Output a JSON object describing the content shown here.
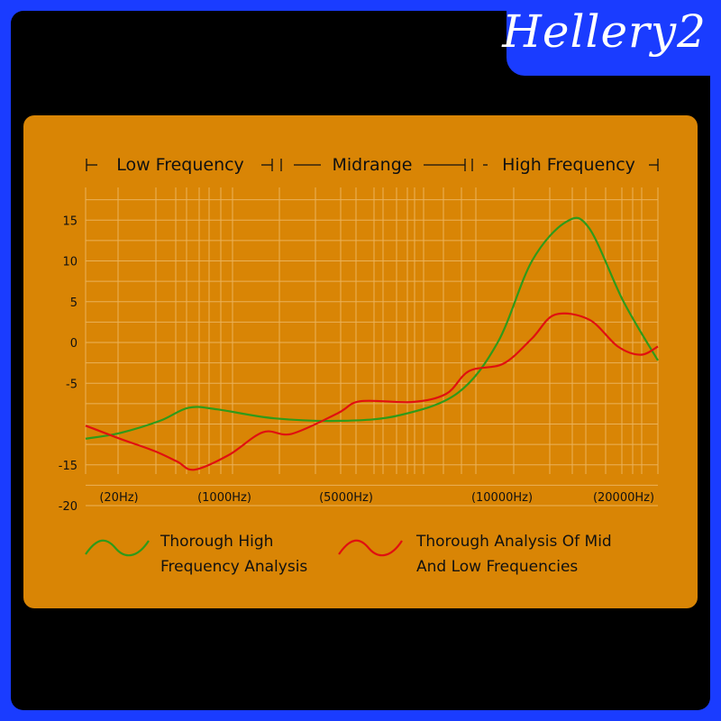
{
  "brand": {
    "text": "Hellery2"
  },
  "chart_data": {
    "type": "line",
    "title": "",
    "xlabel": "",
    "ylabel": "",
    "bands": [
      {
        "label": "Low Frequency"
      },
      {
        "label": "Midrange"
      },
      {
        "label": "High Frequency"
      }
    ],
    "x_tick_labels": [
      "(20Hz)",
      "(1000Hz)",
      "(5000Hz)",
      "(10000Hz)",
      "(20000Hz)"
    ],
    "y_ticks": [
      15,
      10,
      5,
      0,
      -5,
      -15,
      -20
    ],
    "ylim": [
      -20,
      18
    ],
    "grid": true,
    "legend_position": "bottom",
    "series": [
      {
        "name": "Thorough High Frequency Analysis",
        "legend_lines": [
          "Thorough High",
          "Frequency Analysis"
        ],
        "color": "#2f9a1a",
        "points": [
          [
            0,
            -11.8
          ],
          [
            0.06,
            -11.1
          ],
          [
            0.13,
            -9.6
          ],
          [
            0.18,
            -8.0
          ],
          [
            0.23,
            -8.2
          ],
          [
            0.33,
            -9.3
          ],
          [
            0.45,
            -9.6
          ],
          [
            0.55,
            -8.9
          ],
          [
            0.65,
            -6.2
          ],
          [
            0.72,
            0.0
          ],
          [
            0.78,
            10.0
          ],
          [
            0.84,
            14.8
          ],
          [
            0.88,
            14.0
          ],
          [
            0.94,
            5.0
          ],
          [
            1.0,
            -2.2
          ]
        ]
      },
      {
        "name": "Thorough Analysis Of Mid And Low Frequencies",
        "legend_lines": [
          "Thorough Analysis Of Mid",
          "And Low Frequencies"
        ],
        "color": "#e01010",
        "points": [
          [
            0,
            -10.2
          ],
          [
            0.06,
            -11.8
          ],
          [
            0.12,
            -13.3
          ],
          [
            0.16,
            -14.6
          ],
          [
            0.19,
            -15.6
          ],
          [
            0.25,
            -13.8
          ],
          [
            0.31,
            -11.0
          ],
          [
            0.36,
            -11.2
          ],
          [
            0.44,
            -8.7
          ],
          [
            0.48,
            -7.2
          ],
          [
            0.57,
            -7.3
          ],
          [
            0.63,
            -6.3
          ],
          [
            0.67,
            -3.5
          ],
          [
            0.73,
            -2.6
          ],
          [
            0.78,
            0.5
          ],
          [
            0.82,
            3.4
          ],
          [
            0.88,
            2.8
          ],
          [
            0.93,
            -0.5
          ],
          [
            0.97,
            -1.5
          ],
          [
            1.0,
            -0.5
          ]
        ]
      }
    ]
  }
}
